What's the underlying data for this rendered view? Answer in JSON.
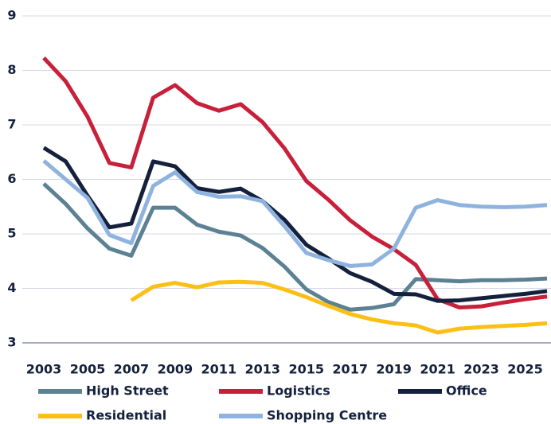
{
  "chart_data": {
    "type": "line",
    "x": [
      2003,
      2004,
      2005,
      2006,
      2007,
      2008,
      2009,
      2010,
      2011,
      2012,
      2013,
      2014,
      2015,
      2016,
      2017,
      2018,
      2019,
      2020,
      2021,
      2022,
      2023,
      2024,
      2025,
      2026
    ],
    "xlim": [
      2003,
      2026
    ],
    "xticks": [
      2003,
      2005,
      2007,
      2009,
      2011,
      2013,
      2015,
      2017,
      2019,
      2021,
      2023,
      2025
    ],
    "ylim": [
      3,
      9
    ],
    "yticks": [
      3,
      4,
      5,
      6,
      7,
      8,
      9
    ],
    "grid": true,
    "legend": "bottom",
    "series": [
      {
        "name": "High Street",
        "color": "#5b8192",
        "values": [
          5.92,
          5.55,
          5.1,
          4.73,
          4.6,
          5.48,
          5.48,
          5.17,
          5.04,
          4.97,
          4.74,
          4.4,
          3.98,
          3.75,
          3.61,
          3.64,
          3.71,
          4.17,
          4.15,
          4.13,
          4.15,
          4.15,
          4.16,
          4.18
        ]
      },
      {
        "name": "Logistics",
        "color": "#c8203a",
        "values": [
          8.23,
          7.8,
          7.15,
          6.3,
          6.22,
          7.5,
          7.73,
          7.4,
          7.26,
          7.38,
          7.05,
          6.57,
          5.97,
          5.63,
          5.25,
          4.95,
          4.72,
          4.43,
          3.8,
          3.65,
          3.67,
          3.74,
          3.8,
          3.85
        ]
      },
      {
        "name": "Office",
        "color": "#14213d",
        "values": [
          6.58,
          6.33,
          5.7,
          5.12,
          5.19,
          6.33,
          6.24,
          5.84,
          5.77,
          5.83,
          5.6,
          5.26,
          4.8,
          4.55,
          4.28,
          4.12,
          3.9,
          3.89,
          3.77,
          3.78,
          3.82,
          3.86,
          3.9,
          3.95
        ]
      },
      {
        "name": "Residential",
        "color": "#fbbf16",
        "values": [
          null,
          null,
          null,
          null,
          3.78,
          4.03,
          4.1,
          4.02,
          4.11,
          4.12,
          4.1,
          3.98,
          3.84,
          3.68,
          3.53,
          3.43,
          3.36,
          3.32,
          3.19,
          3.26,
          3.29,
          3.31,
          3.33,
          3.36
        ]
      },
      {
        "name": "Shopping Centre",
        "color": "#8fb3df",
        "values": [
          6.34,
          6.0,
          5.66,
          4.98,
          4.83,
          5.88,
          6.13,
          5.77,
          5.68,
          5.69,
          5.6,
          5.14,
          4.65,
          4.52,
          4.41,
          4.44,
          4.73,
          5.48,
          5.62,
          5.53,
          5.5,
          5.49,
          5.5,
          5.53
        ]
      }
    ]
  }
}
